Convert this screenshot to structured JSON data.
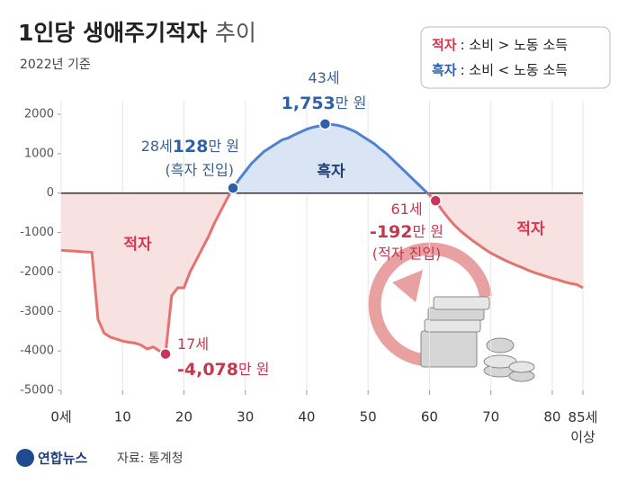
{
  "chart_data": {
    "type": "line",
    "title": "1인당 생애주기적자 추이",
    "subtitle": "2022년 기준",
    "legend": [
      {
        "name": "적자",
        "desc": ": 소비 > 노동 소득",
        "color": "#d8344f"
      },
      {
        "name": "흑자",
        "desc": ": 소비 < 노동 소득",
        "color": "#2e5fa8"
      }
    ],
    "x": [
      0,
      1,
      2,
      3,
      4,
      5,
      6,
      7,
      8,
      9,
      10,
      11,
      12,
      13,
      14,
      15,
      16,
      17,
      18,
      19,
      20,
      21,
      22,
      23,
      24,
      25,
      26,
      27,
      28,
      29,
      30,
      31,
      32,
      33,
      34,
      35,
      36,
      37,
      38,
      39,
      40,
      41,
      42,
      43,
      44,
      45,
      46,
      47,
      48,
      49,
      50,
      51,
      52,
      53,
      54,
      55,
      56,
      57,
      58,
      59,
      60,
      61,
      62,
      63,
      64,
      65,
      66,
      67,
      68,
      69,
      70,
      71,
      72,
      73,
      74,
      75,
      76,
      77,
      78,
      79,
      80,
      81,
      82,
      83,
      84,
      85
    ],
    "values": [
      -1450,
      -1460,
      -1470,
      -1480,
      -1490,
      -1500,
      -3200,
      -3550,
      -3650,
      -3700,
      -3750,
      -3780,
      -3800,
      -3850,
      -3950,
      -3900,
      -4000,
      -4078,
      -2600,
      -2400,
      -2400,
      -2000,
      -1700,
      -1400,
      -1100,
      -750,
      -450,
      -150,
      128,
      350,
      550,
      750,
      900,
      1050,
      1150,
      1250,
      1350,
      1400,
      1480,
      1550,
      1620,
      1670,
      1700,
      1753,
      1740,
      1720,
      1680,
      1620,
      1550,
      1450,
      1350,
      1250,
      1120,
      1000,
      850,
      700,
      550,
      400,
      250,
      100,
      -50,
      -192,
      -420,
      -620,
      -800,
      -950,
      -1080,
      -1200,
      -1310,
      -1420,
      -1520,
      -1600,
      -1680,
      -1750,
      -1820,
      -1880,
      -1950,
      -2010,
      -2060,
      -2110,
      -2160,
      -2200,
      -2250,
      -2290,
      -2320,
      -2400
    ],
    "value_labels": [
      null,
      null,
      null,
      null,
      null,
      null,
      null,
      null,
      null,
      null,
      null,
      null,
      null,
      null,
      null,
      null,
      null,
      "-4,078",
      null,
      null,
      null,
      null,
      null,
      null,
      null,
      null,
      null,
      null,
      "128",
      null,
      null,
      null,
      null,
      null,
      null,
      null,
      null,
      null,
      null,
      null,
      null,
      null,
      null,
      "1,753",
      null,
      null,
      null,
      null,
      null,
      null,
      null,
      null,
      null,
      null,
      null,
      null,
      null,
      null,
      null,
      null,
      null,
      "-192",
      null,
      null,
      null,
      null,
      null,
      null,
      null,
      null,
      null,
      null,
      null,
      null,
      null,
      null,
      null,
      null,
      null,
      null,
      null,
      null,
      null,
      null,
      null,
      null
    ],
    "age_labels": [
      null,
      null,
      null,
      null,
      null,
      null,
      null,
      null,
      null,
      null,
      null,
      null,
      null,
      null,
      null,
      null,
      null,
      "17세",
      null,
      null,
      null,
      null,
      null,
      null,
      null,
      null,
      null,
      null,
      "28세",
      null,
      null,
      null,
      null,
      null,
      null,
      null,
      null,
      null,
      null,
      null,
      null,
      null,
      null,
      "43세",
      null,
      null,
      null,
      null,
      null,
      null,
      null,
      null,
      null,
      null,
      null,
      null,
      null,
      null,
      null,
      null,
      null,
      "61세",
      null,
      null,
      null,
      null,
      null,
      null,
      null,
      null,
      null,
      null,
      null,
      null,
      null,
      null,
      null,
      null,
      null,
      null,
      null,
      null,
      null,
      null,
      null,
      null
    ],
    "notes": [
      {
        "at": 28,
        "text": "(흑자 진입)"
      },
      {
        "at": 61,
        "text": "(적자 진입)"
      }
    ],
    "value_unit": "만 원",
    "region_labels": [
      "적자",
      "흑자",
      "적자"
    ],
    "colors": {
      "negative": "#e4736f",
      "positive": "#4f82cf",
      "negative_fill": "#f7e1e1",
      "positive_fill": "#d9e4f4"
    },
    "xlim": [
      0,
      85
    ],
    "xticks": [
      {
        "value": 0,
        "label": "0세"
      },
      10,
      20,
      30,
      40,
      50,
      60,
      70,
      80,
      {
        "value": 85,
        "label": "85세 이상"
      }
    ],
    "ylim": [
      -5000,
      2000
    ],
    "yticks": [
      2000,
      1000,
      0,
      -1000,
      -2000,
      -3000,
      -4000,
      -5000
    ],
    "grid": true,
    "source": "자료: 통계청",
    "logo": "연합뉴스"
  }
}
